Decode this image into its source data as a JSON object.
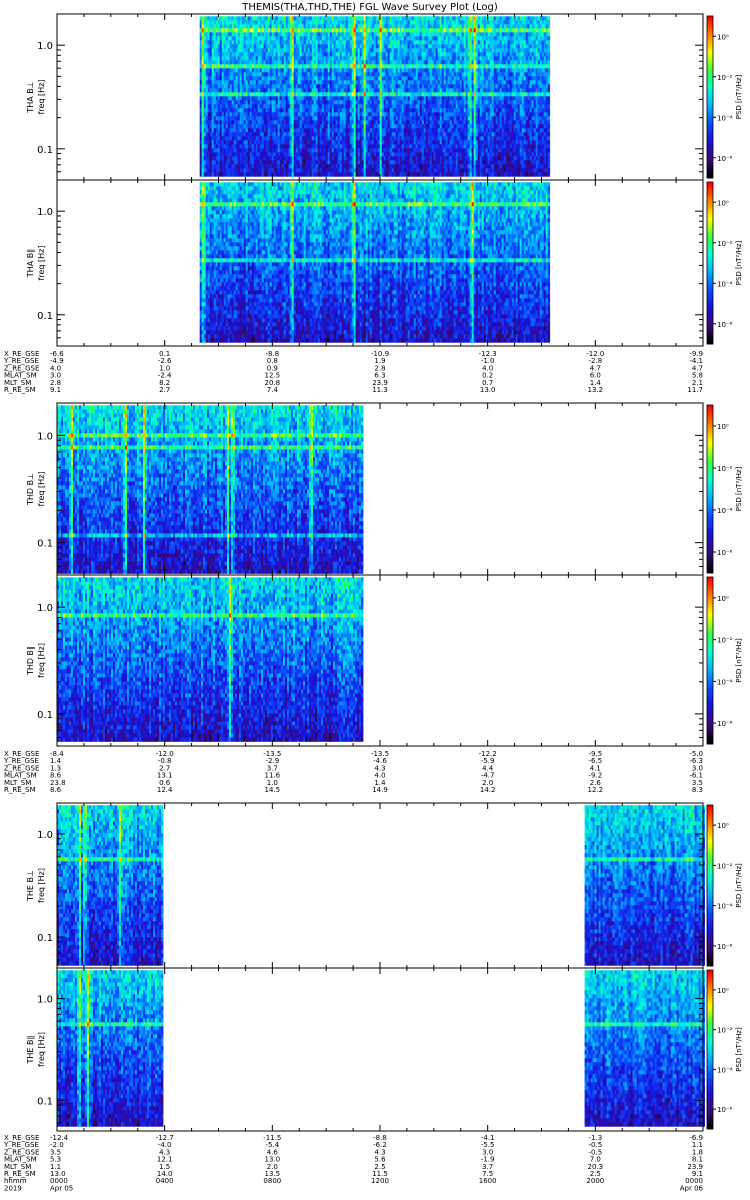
{
  "chart_data": {
    "type": "heatmap",
    "title": "THEMIS(THA,THD,THE) FGL Wave Survey Plot (Log)",
    "x_range": [
      "0000",
      "0000"
    ],
    "x_tick_times": [
      "0000",
      "0400",
      "0800",
      "1200",
      "1600",
      "2000",
      "0000"
    ],
    "colorbar": {
      "label": "PSD [nT²/Hz]",
      "tick_labels": [
        "10⁰",
        "10⁻²",
        "10⁻⁴",
        "10⁻⁶"
      ],
      "tick_exponents": [
        0,
        -2,
        -4,
        -6
      ],
      "range_exponent": [
        -7,
        1
      ],
      "colors": [
        "#000000",
        "#3a0a78",
        "#1a10d8",
        "#0a4cff",
        "#00b4ff",
        "#00ffd0",
        "#40ff40",
        "#ffff00",
        "#ff8000",
        "#ff0000"
      ]
    },
    "yaxis": {
      "type": "log",
      "range": [
        0.05,
        2.0
      ],
      "tick_labels": [
        "1.0",
        "0.1"
      ],
      "tick_values": [
        1.0,
        0.1
      ]
    },
    "panels": [
      {
        "probe": "THA",
        "component": "B⊥",
        "ylabel_top": "THA B⊥",
        "ylabel": "freq [Hz]",
        "data_hours": [
          5.3,
          18.3
        ],
        "bright_bands": [
          0.35,
          0.63,
          1.4
        ],
        "bright_stripes": [
          5.4,
          8.7,
          11.0,
          11.4,
          12.0,
          15.3,
          15.5
        ]
      },
      {
        "probe": "THA",
        "component": "B∥",
        "ylabel_top": "THA B∥",
        "ylabel": "freq [Hz]",
        "data_hours": [
          5.3,
          18.3
        ],
        "bright_bands": [
          0.35,
          1.2
        ],
        "bright_stripes": [
          5.4,
          8.7,
          11.0,
          15.4
        ]
      },
      {
        "probe": "THD",
        "component": "B⊥",
        "ylabel_top": "THD B⊥",
        "ylabel": "freq [Hz]",
        "data_hours": [
          0.0,
          11.3
        ],
        "bright_bands": [
          0.8,
          1.05,
          0.12
        ],
        "bright_stripes": [
          0.5,
          2.5,
          3.2,
          6.3,
          6.5,
          9.4
        ]
      },
      {
        "probe": "THD",
        "component": "B∥",
        "ylabel_top": "THD B∥",
        "ylabel": "freq [Hz]",
        "data_hours": [
          0.0,
          11.3
        ],
        "bright_bands": [
          0.9
        ],
        "bright_stripes": [
          6.4
        ]
      },
      {
        "probe": "THE",
        "component": "B⊥",
        "ylabel_top": "THE B⊥",
        "ylabel": "freq [Hz]",
        "data_hours": [
          [
            0.0,
            3.9
          ],
          [
            19.6,
            24.0
          ]
        ],
        "bright_bands": [
          0.6
        ],
        "bright_stripes": [
          0.8,
          1.0,
          2.3
        ]
      },
      {
        "probe": "THE",
        "component": "B∥",
        "ylabel_top": "THE B∥",
        "ylabel": "freq [Hz]",
        "data_hours": [
          [
            0.0,
            3.9
          ],
          [
            19.6,
            24.0
          ]
        ],
        "bright_bands": [
          0.6
        ],
        "bright_stripes": [
          0.8,
          1.1
        ]
      }
    ],
    "ephemeris": [
      {
        "probe": "THA",
        "rows": [
          {
            "label": "X_RE_GSE",
            "values": [
              "-6.6",
              "0.1",
              "-8.8",
              "-10.9",
              "-12.3",
              "-12.0",
              "-9.9"
            ]
          },
          {
            "label": "Y_RE_GSE",
            "values": [
              "-4.9",
              "-2.6",
              "0.8",
              "1.9",
              "-1.0",
              "-2.8",
              "-4.1"
            ]
          },
          {
            "label": "Z_RE_GSE",
            "values": [
              "4.0",
              "1.0",
              "0.9",
              "2.8",
              "4.0",
              "4.7",
              "4.7"
            ]
          },
          {
            "label": "MLAT_SM",
            "values": [
              "3.0",
              "-2.4",
              "12.5",
              "6.3",
              "0.2",
              "6.0",
              "5.8"
            ]
          },
          {
            "label": "MLT_SM",
            "values": [
              "2.8",
              "8.2",
              "20.8",
              "23.9",
              "0.7",
              "1.4",
              "2.1"
            ]
          },
          {
            "label": "R_RE_SM",
            "values": [
              "9.1",
              "2.7",
              "7.4",
              "11.3",
              "13.0",
              "13.2",
              "11.7"
            ]
          }
        ]
      },
      {
        "probe": "THD",
        "rows": [
          {
            "label": "X_RE_GSE",
            "values": [
              "-8.4",
              "-12.0",
              "-13.5",
              "-13.5",
              "-12.2",
              "-9.5",
              "-5.0"
            ]
          },
          {
            "label": "Y_RE_GSE",
            "values": [
              "1.4",
              "-0.8",
              "-2.9",
              "-4.6",
              "-5.9",
              "-6.5",
              "-6.3"
            ]
          },
          {
            "label": "Z_RE_GSE",
            "values": [
              "1.3",
              "2.7",
              "3.7",
              "4.3",
              "4.4",
              "4.1",
              "3.0"
            ]
          },
          {
            "label": "MLAT_SM",
            "values": [
              "8.6",
              "13.1",
              "11.6",
              "4.0",
              "-4.7",
              "-9.2",
              "-6.1"
            ]
          },
          {
            "label": "MLT_SM",
            "values": [
              "23.8",
              "0.6",
              "1.0",
              "1.4",
              "2.0",
              "2.6",
              "3.5"
            ]
          },
          {
            "label": "R_RE_SM",
            "values": [
              "8.6",
              "12.4",
              "14.5",
              "14.9",
              "14.2",
              "12.2",
              "8.3"
            ]
          }
        ]
      },
      {
        "probe": "THE",
        "rows": [
          {
            "label": "X_RE_GSE",
            "values": [
              "-12.4",
              "-12.7",
              "-11.5",
              "-8.8",
              "-4.1",
              "-1.3",
              "-6.9"
            ]
          },
          {
            "label": "Y_RE_GSE",
            "values": [
              "-2.0",
              "-4.0",
              "-5.4",
              "-6.2",
              "-5.5",
              "-0.5",
              "1.1"
            ]
          },
          {
            "label": "Z_RE_GSE",
            "values": [
              "3.5",
              "4.3",
              "4.6",
              "4.3",
              "3.0",
              "-0.5",
              "1.8"
            ]
          },
          {
            "label": "MLAT_SM",
            "values": [
              "5.3",
              "12.1",
              "13.0",
              "5.6",
              "-1.9",
              "7.0",
              "8.1"
            ]
          },
          {
            "label": "MLT_SM",
            "values": [
              "1.1",
              "1.5",
              "2.0",
              "2.5",
              "3.7",
              "20.3",
              "23.9"
            ]
          },
          {
            "label": "R_RE_SM",
            "values": [
              "13.0",
              "14.0",
              "13.5",
              "11.5",
              "7.5",
              "2.5",
              "9.1"
            ]
          },
          {
            "label": "hhmm",
            "values": [
              "0000",
              "0400",
              "0800",
              "1200",
              "1600",
              "2000",
              "0000"
            ]
          },
          {
            "label": "2019",
            "values": [
              "Apr 05",
              "",
              "",
              "",
              "",
              "",
              "Apr 06"
            ]
          }
        ]
      }
    ]
  }
}
